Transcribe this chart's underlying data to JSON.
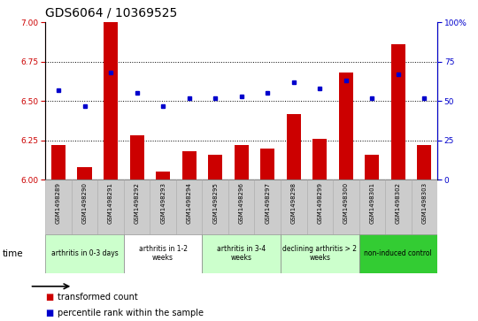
{
  "title": "GDS6064 / 10369525",
  "samples": [
    "GSM1498289",
    "GSM1498290",
    "GSM1498291",
    "GSM1498292",
    "GSM1498293",
    "GSM1498294",
    "GSM1498295",
    "GSM1498296",
    "GSM1498297",
    "GSM1498298",
    "GSM1498299",
    "GSM1498300",
    "GSM1498301",
    "GSM1498302",
    "GSM1498303"
  ],
  "transformed_count": [
    6.22,
    6.08,
    7.0,
    6.28,
    6.05,
    6.18,
    6.16,
    6.22,
    6.2,
    6.42,
    6.26,
    6.68,
    6.16,
    6.86,
    6.22
  ],
  "percentile_rank": [
    57,
    47,
    68,
    55,
    47,
    52,
    52,
    53,
    55,
    62,
    58,
    63,
    52,
    67,
    52
  ],
  "ylim_left": [
    6.0,
    7.0
  ],
  "ylim_right": [
    0,
    100
  ],
  "yticks_left": [
    6.0,
    6.25,
    6.5,
    6.75,
    7.0
  ],
  "yticks_right": [
    0,
    25,
    50,
    75,
    100
  ],
  "bar_color": "#cc0000",
  "dot_color": "#0000cc",
  "groups": [
    {
      "label": "arthritis in 0-3 days",
      "start": 0,
      "end": 3,
      "color": "#ccffcc"
    },
    {
      "label": "arthritis in 1-2\nweeks",
      "start": 3,
      "end": 6,
      "color": "#ffffff"
    },
    {
      "label": "arthritis in 3-4\nweeks",
      "start": 6,
      "end": 9,
      "color": "#ccffcc"
    },
    {
      "label": "declining arthritis > 2\nweeks",
      "start": 9,
      "end": 12,
      "color": "#ccffcc"
    },
    {
      "label": "non-induced control",
      "start": 12,
      "end": 15,
      "color": "#33cc33"
    }
  ],
  "legend_bar_label": "transformed count",
  "legend_dot_label": "percentile rank within the sample",
  "title_fontsize": 10,
  "tick_fontsize": 6.5,
  "axis_color_left": "#cc0000",
  "axis_color_right": "#0000cc",
  "grid_lines": [
    6.25,
    6.5,
    6.75
  ],
  "sample_bg_color": "#cccccc",
  "sample_border_color": "#aaaaaa"
}
